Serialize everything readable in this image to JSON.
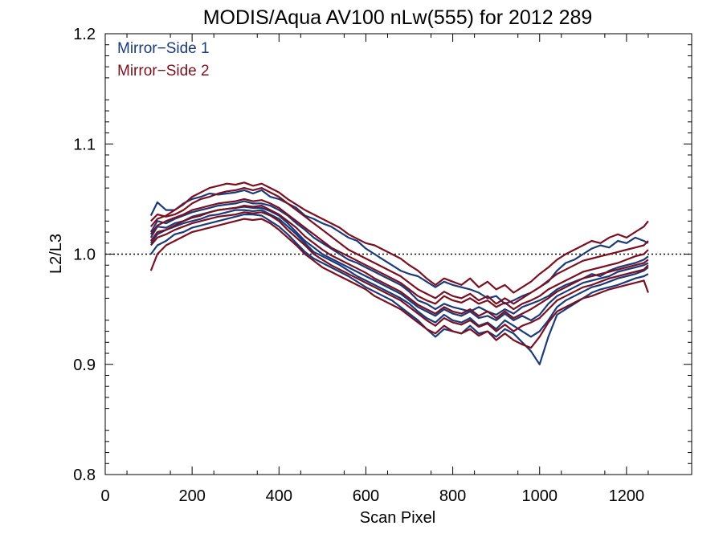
{
  "chart_data": {
    "type": "line",
    "title": "MODIS/Aqua AV100 nLw(555) for 2012 289",
    "xlabel": "Scan Pixel",
    "ylabel": "L2/L3",
    "xlim": [
      0,
      1350
    ],
    "ylim": [
      0.8,
      1.2
    ],
    "x_ticks": [
      "0",
      "200",
      "400",
      "600",
      "800",
      "1000",
      "1200"
    ],
    "y_ticks": [
      "0.8",
      "0.9",
      "1.0",
      "1.1",
      "1.2"
    ],
    "reference_line": 1.0,
    "grid": false,
    "legend_position": "top-left",
    "legend": [
      {
        "label": "Mirror−Side 1",
        "color": "#1a3a7a"
      },
      {
        "label": "Mirror−Side 2",
        "color": "#7a1020"
      }
    ],
    "x": [
      105,
      120,
      140,
      160,
      180,
      200,
      220,
      240,
      260,
      280,
      300,
      320,
      340,
      360,
      380,
      400,
      420,
      440,
      460,
      480,
      500,
      520,
      540,
      560,
      580,
      600,
      620,
      640,
      660,
      680,
      700,
      720,
      740,
      760,
      780,
      800,
      820,
      840,
      860,
      880,
      900,
      920,
      940,
      960,
      980,
      1000,
      1020,
      1040,
      1060,
      1080,
      1100,
      1120,
      1140,
      1160,
      1180,
      1200,
      1220,
      1240,
      1250
    ],
    "series": [
      {
        "color": "#1a3a7a",
        "values": [
          1.035,
          1.047,
          1.04,
          1.04,
          1.046,
          1.05,
          1.052,
          1.055,
          1.054,
          1.055,
          1.056,
          1.058,
          1.055,
          1.058,
          1.052,
          1.05,
          1.046,
          1.042,
          1.035,
          1.032,
          1.028,
          1.025,
          1.02,
          1.015,
          1.012,
          1.005,
          1.0,
          0.995,
          0.99,
          0.985,
          0.982,
          0.98,
          0.975,
          0.97,
          0.975,
          0.972,
          0.97,
          0.968,
          0.965,
          0.96,
          0.962,
          0.955,
          0.958,
          0.962,
          0.965,
          0.97,
          0.975,
          0.985,
          0.992,
          0.995,
          1.0,
          1.005,
          1.008,
          1.006,
          1.012,
          1.01,
          1.015,
          1.012,
          1.01
        ]
      },
      {
        "color": "#1a3a7a",
        "values": [
          1.02,
          1.03,
          1.028,
          1.032,
          1.035,
          1.038,
          1.04,
          1.042,
          1.044,
          1.045,
          1.046,
          1.048,
          1.046,
          1.046,
          1.044,
          1.04,
          1.035,
          1.028,
          1.022,
          1.015,
          1.01,
          1.005,
          1.0,
          0.995,
          0.992,
          0.988,
          0.984,
          0.98,
          0.976,
          0.972,
          0.966,
          0.958,
          0.955,
          0.95,
          0.955,
          0.952,
          0.95,
          0.948,
          0.952,
          0.948,
          0.945,
          0.95,
          0.946,
          0.952,
          0.955,
          0.958,
          0.962,
          0.968,
          0.972,
          0.975,
          0.978,
          0.982,
          0.98,
          0.985,
          0.988,
          0.99,
          0.992,
          0.995,
          0.998
        ]
      },
      {
        "color": "#1a3a7a",
        "values": [
          1.01,
          1.018,
          1.022,
          1.025,
          1.028,
          1.03,
          1.032,
          1.035,
          1.036,
          1.038,
          1.04,
          1.04,
          1.039,
          1.04,
          1.036,
          1.032,
          1.025,
          1.018,
          1.01,
          1.002,
          0.998,
          0.994,
          0.99,
          0.985,
          0.98,
          0.976,
          0.972,
          0.968,
          0.964,
          0.96,
          0.955,
          0.948,
          0.942,
          0.938,
          0.945,
          0.94,
          0.938,
          0.942,
          0.935,
          0.938,
          0.932,
          0.94,
          0.935,
          0.93,
          0.925,
          0.93,
          0.94,
          0.952,
          0.958,
          0.962,
          0.966,
          0.97,
          0.972,
          0.975,
          0.978,
          0.98,
          0.982,
          0.985,
          0.988
        ]
      },
      {
        "color": "#1a3a7a",
        "values": [
          1.0,
          1.008,
          1.012,
          1.018,
          1.02,
          1.024,
          1.026,
          1.028,
          1.03,
          1.032,
          1.034,
          1.036,
          1.036,
          1.035,
          1.03,
          1.025,
          1.018,
          1.01,
          1.002,
          0.996,
          0.992,
          0.988,
          0.984,
          0.98,
          0.975,
          0.97,
          0.966,
          0.962,
          0.958,
          0.952,
          0.946,
          0.94,
          0.932,
          0.925,
          0.932,
          0.93,
          0.928,
          0.935,
          0.928,
          0.93,
          0.925,
          0.932,
          0.928,
          0.92,
          0.912,
          0.9,
          0.925,
          0.945,
          0.95,
          0.955,
          0.96,
          0.965,
          0.968,
          0.97,
          0.972,
          0.975,
          0.978,
          0.98,
          0.982
        ]
      },
      {
        "color": "#1a3a7a",
        "values": [
          1.015,
          1.025,
          1.024,
          1.028,
          1.03,
          1.034,
          1.036,
          1.038,
          1.04,
          1.041,
          1.042,
          1.043,
          1.042,
          1.042,
          1.039,
          1.035,
          1.028,
          1.02,
          1.012,
          1.006,
          1.0,
          0.996,
          0.992,
          0.988,
          0.984,
          0.98,
          0.976,
          0.972,
          0.968,
          0.964,
          0.958,
          0.952,
          0.948,
          0.944,
          0.95,
          0.946,
          0.944,
          0.948,
          0.942,
          0.944,
          0.94,
          0.946,
          0.94,
          0.944,
          0.94,
          0.945,
          0.955,
          0.962,
          0.966,
          0.97,
          0.974,
          0.976,
          0.978,
          0.98,
          0.984,
          0.986,
          0.988,
          0.99,
          0.992
        ]
      },
      {
        "color": "#7a1020",
        "values": [
          1.025,
          1.032,
          1.035,
          1.04,
          1.045,
          1.052,
          1.056,
          1.06,
          1.062,
          1.064,
          1.063,
          1.065,
          1.062,
          1.064,
          1.06,
          1.056,
          1.05,
          1.045,
          1.04,
          1.036,
          1.032,
          1.028,
          1.024,
          1.018,
          1.014,
          1.01,
          1.008,
          1.004,
          1.0,
          0.996,
          0.99,
          0.985,
          0.978,
          0.972,
          0.978,
          0.975,
          0.972,
          0.978,
          0.97,
          0.975,
          0.968,
          0.972,
          0.965,
          0.97,
          0.975,
          0.982,
          0.988,
          0.995,
          1.0,
          1.004,
          1.008,
          1.012,
          1.01,
          1.015,
          1.018,
          1.015,
          1.02,
          1.025,
          1.03
        ]
      },
      {
        "color": "#7a1020",
        "values": [
          1.018,
          1.026,
          1.03,
          1.033,
          1.036,
          1.04,
          1.042,
          1.044,
          1.046,
          1.047,
          1.048,
          1.05,
          1.048,
          1.049,
          1.046,
          1.042,
          1.036,
          1.03,
          1.024,
          1.018,
          1.012,
          1.006,
          1.002,
          0.998,
          0.994,
          0.99,
          0.986,
          0.982,
          0.978,
          0.974,
          0.968,
          0.962,
          0.958,
          0.955,
          0.962,
          0.958,
          0.956,
          0.96,
          0.955,
          0.958,
          0.952,
          0.956,
          0.95,
          0.955,
          0.958,
          0.962,
          0.968,
          0.972,
          0.976,
          0.98,
          0.984,
          0.986,
          0.988,
          0.99,
          0.992,
          0.995,
          0.998,
          1.0,
          1.004
        ]
      },
      {
        "color": "#7a1020",
        "values": [
          1.008,
          1.015,
          1.018,
          1.022,
          1.025,
          1.028,
          1.03,
          1.032,
          1.034,
          1.035,
          1.036,
          1.038,
          1.037,
          1.038,
          1.035,
          1.03,
          1.022,
          1.015,
          1.008,
          1.0,
          0.995,
          0.99,
          0.986,
          0.982,
          0.978,
          0.974,
          0.97,
          0.966,
          0.962,
          0.958,
          0.952,
          0.946,
          0.94,
          0.935,
          0.942,
          0.938,
          0.936,
          0.94,
          0.934,
          0.937,
          0.93,
          0.936,
          0.93,
          0.935,
          0.938,
          0.942,
          0.95,
          0.958,
          0.962,
          0.966,
          0.97,
          0.972,
          0.975,
          0.978,
          0.98,
          0.982,
          0.984,
          0.986,
          0.99
        ]
      },
      {
        "color": "#7a1020",
        "values": [
          0.985,
          1.0,
          1.008,
          1.012,
          1.016,
          1.02,
          1.022,
          1.024,
          1.026,
          1.028,
          1.03,
          1.032,
          1.031,
          1.032,
          1.028,
          1.022,
          1.015,
          1.008,
          1.0,
          0.994,
          0.988,
          0.984,
          0.98,
          0.976,
          0.972,
          0.968,
          0.962,
          0.958,
          0.954,
          0.95,
          0.944,
          0.938,
          0.932,
          0.928,
          0.935,
          0.93,
          0.928,
          0.932,
          0.926,
          0.93,
          0.922,
          0.928,
          0.922,
          0.918,
          0.915,
          0.925,
          0.938,
          0.948,
          0.952,
          0.956,
          0.96,
          0.962,
          0.965,
          0.968,
          0.97,
          0.972,
          0.974,
          0.976,
          0.965
        ]
      },
      {
        "color": "#7a1020",
        "values": [
          1.012,
          1.02,
          1.022,
          1.026,
          1.03,
          1.033,
          1.035,
          1.038,
          1.04,
          1.041,
          1.042,
          1.044,
          1.043,
          1.044,
          1.04,
          1.036,
          1.03,
          1.024,
          1.016,
          1.01,
          1.004,
          0.999,
          0.995,
          0.991,
          0.987,
          0.983,
          0.978,
          0.974,
          0.97,
          0.966,
          0.96,
          0.954,
          0.95,
          0.946,
          0.952,
          0.948,
          0.946,
          0.95,
          0.944,
          0.948,
          0.942,
          0.948,
          0.942,
          0.946,
          0.95,
          0.955,
          0.96,
          0.966,
          0.97,
          0.974,
          0.978,
          0.98,
          0.982,
          0.984,
          0.986,
          0.988,
          0.99,
          0.992,
          0.995
        ]
      },
      {
        "color": "#7a1020",
        "values": [
          1.03,
          1.036,
          1.034,
          1.036,
          1.04,
          1.046,
          1.05,
          1.052,
          1.055,
          1.057,
          1.058,
          1.06,
          1.058,
          1.06,
          1.056,
          1.052,
          1.046,
          1.04,
          1.034,
          1.028,
          1.022,
          1.016,
          1.01,
          1.004,
          1.0,
          0.996,
          0.992,
          0.988,
          0.984,
          0.98,
          0.974,
          0.968,
          0.964,
          0.96,
          0.966,
          0.962,
          0.96,
          0.964,
          0.958,
          0.962,
          0.955,
          0.96,
          0.955,
          0.96,
          0.965,
          0.97,
          0.976,
          0.982,
          0.986,
          0.99,
          0.994,
          0.996,
          0.998,
          1.0,
          1.002,
          1.004,
          1.006,
          1.008,
          1.012
        ]
      }
    ]
  }
}
